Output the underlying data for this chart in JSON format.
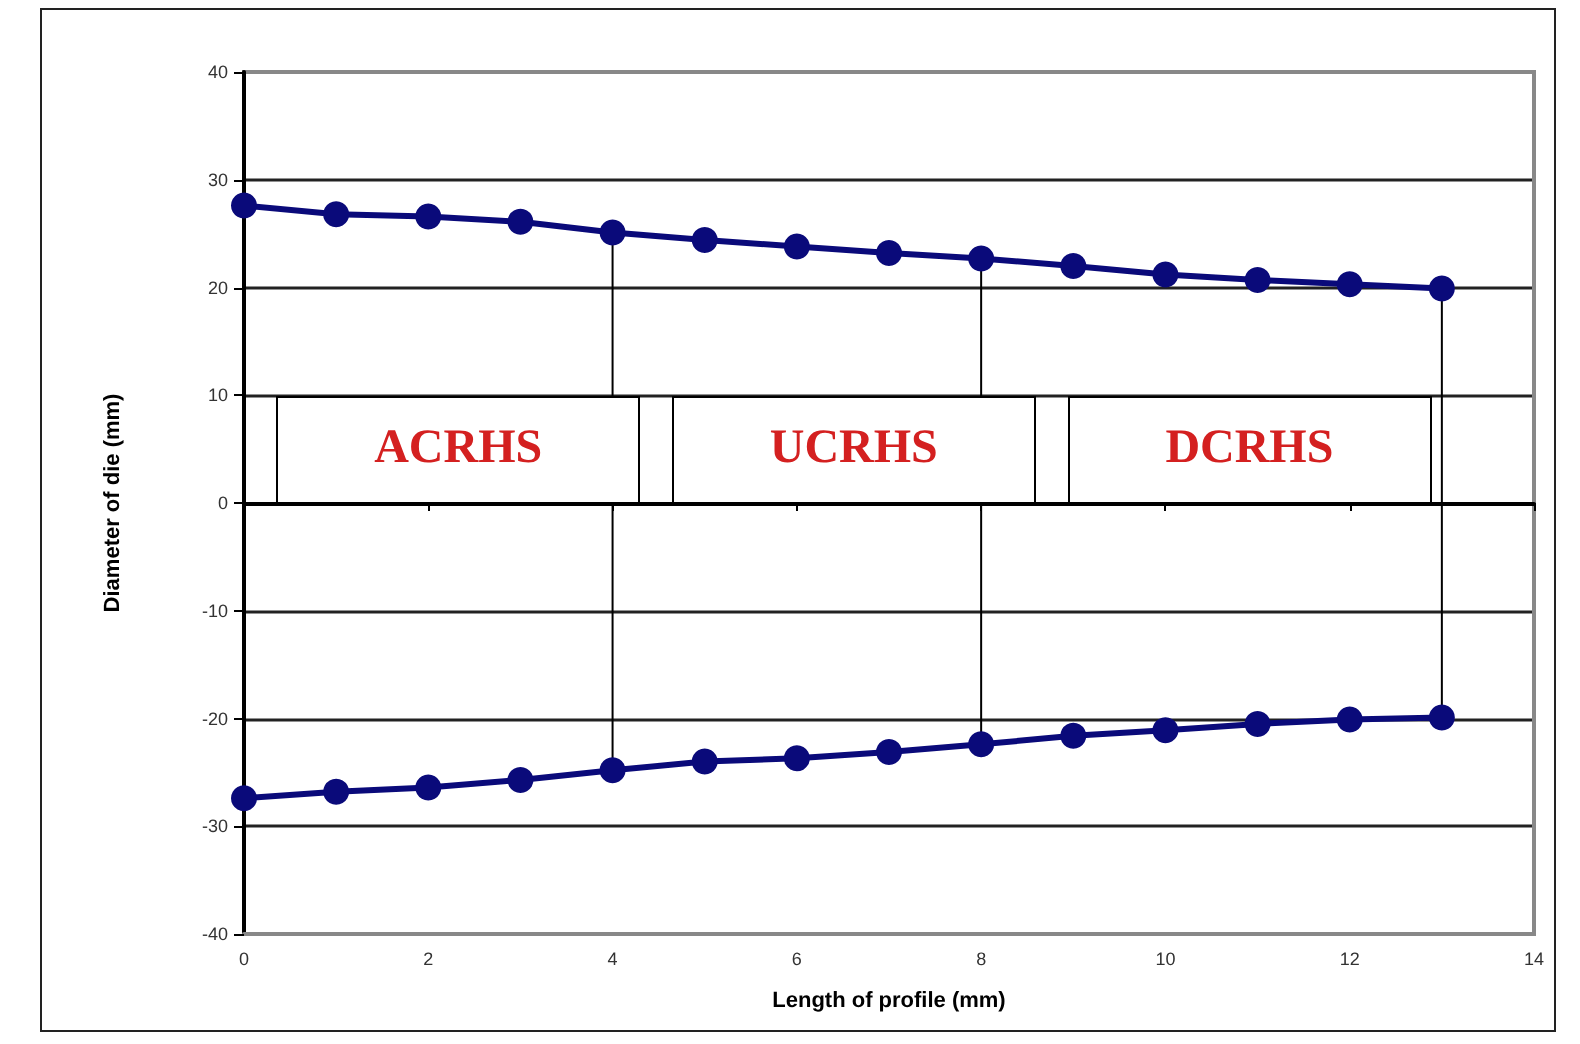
{
  "chart_data": {
    "type": "line",
    "xlabel": "Length of profile (mm)",
    "ylabel": "Diameter of die (mm)",
    "xlim": [
      0,
      14
    ],
    "xticks": [
      0,
      2,
      4,
      6,
      8,
      10,
      12,
      14
    ],
    "ylim": [
      -40,
      40
    ],
    "yticks": [
      -40,
      -30,
      -20,
      -10,
      0,
      10,
      20,
      30,
      40
    ],
    "grid": "y",
    "marker": "circle",
    "line_style": "solid",
    "series": [
      {
        "color": "#0a0a7a",
        "x": [
          0,
          1,
          2,
          3,
          4,
          5,
          6,
          7,
          8,
          9,
          10,
          11,
          12,
          13
        ],
        "values": [
          27.6,
          26.8,
          26.6,
          26.1,
          25.1,
          24.4,
          23.8,
          23.2,
          22.7,
          22.0,
          21.2,
          20.7,
          20.3,
          19.9
        ]
      },
      {
        "color": "#0a0a7a",
        "x": [
          0,
          1,
          2,
          3,
          4,
          5,
          6,
          7,
          8,
          9,
          10,
          11,
          12,
          13
        ],
        "values": [
          -27.4,
          -26.8,
          -26.4,
          -25.7,
          -24.8,
          -24.0,
          -23.7,
          -23.1,
          -22.4,
          -21.6,
          -21.1,
          -20.5,
          -20.1,
          -19.9
        ]
      },
      {
        "color": "#000000",
        "marker": "none",
        "x": [
          4,
          4
        ],
        "values": [
          25.1,
          -24.8
        ]
      },
      {
        "color": "#000000",
        "marker": "none",
        "x": [
          8,
          8
        ],
        "values": [
          22.7,
          -22.4
        ]
      },
      {
        "color": "#000000",
        "marker": "none",
        "x": [
          13,
          13
        ],
        "values": [
          19.9,
          -19.9
        ]
      }
    ],
    "annotations": [
      "ACRHS",
      "UCRHS",
      "DCRHS"
    ]
  }
}
